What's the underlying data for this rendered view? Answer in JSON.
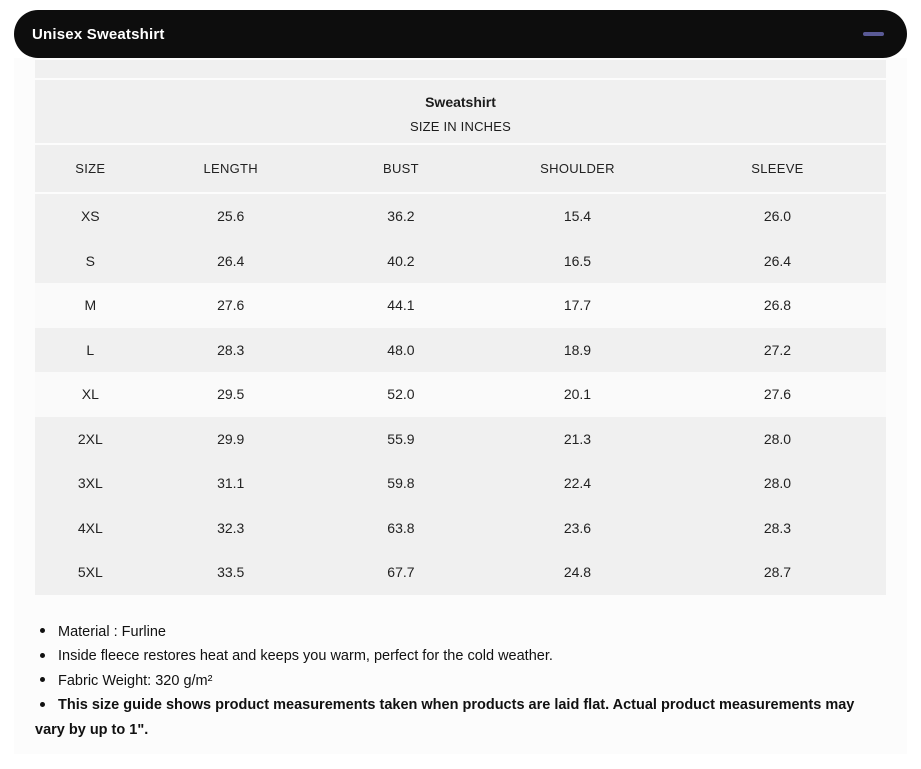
{
  "accordion": {
    "title": "Unisex Sweatshirt",
    "collapse_icon": "minus",
    "bar_color": "#0d0d0d",
    "icon_color": "#5a5a96"
  },
  "table": {
    "title": "Sweatshirt",
    "subtitle": "SIZE IN INCHES",
    "columns": [
      "SIZE",
      "LENGTH",
      "BUST",
      "SHOULDER",
      "SLEEVE"
    ],
    "rows": [
      {
        "size": "XS",
        "values": [
          "25.6",
          "36.2",
          "15.4",
          "26.0"
        ],
        "light": false
      },
      {
        "size": "S",
        "values": [
          "26.4",
          "40.2",
          "16.5",
          "26.4"
        ],
        "light": false
      },
      {
        "size": "M",
        "values": [
          "27.6",
          "44.1",
          "17.7",
          "26.8"
        ],
        "light": true
      },
      {
        "size": "L",
        "values": [
          "28.3",
          "48.0",
          "18.9",
          "27.2"
        ],
        "light": false
      },
      {
        "size": "XL",
        "values": [
          "29.5",
          "52.0",
          "20.1",
          "27.6"
        ],
        "light": true
      },
      {
        "size": "2XL",
        "values": [
          "29.9",
          "55.9",
          "21.3",
          "28.0"
        ],
        "light": false
      },
      {
        "size": "3XL",
        "values": [
          "31.1",
          "59.8",
          "22.4",
          "28.0"
        ],
        "light": false
      },
      {
        "size": "4XL",
        "values": [
          "32.3",
          "63.8",
          "23.6",
          "28.3"
        ],
        "light": false
      },
      {
        "size": "5XL",
        "values": [
          "33.5",
          "67.7",
          "24.8",
          "28.7"
        ],
        "light": false
      }
    ]
  },
  "notes": {
    "items": [
      {
        "text": "Material : Furline",
        "bold": false
      },
      {
        "text": "Inside fleece restores heat and keeps you warm, perfect for the cold weather.",
        "bold": false
      },
      {
        "text": "Fabric Weight: 320 g/m²",
        "bold": false
      },
      {
        "text": "This size guide shows product measurements taken when products are laid flat. Actual product measurements may vary by up to 1\".",
        "bold": true
      }
    ]
  }
}
